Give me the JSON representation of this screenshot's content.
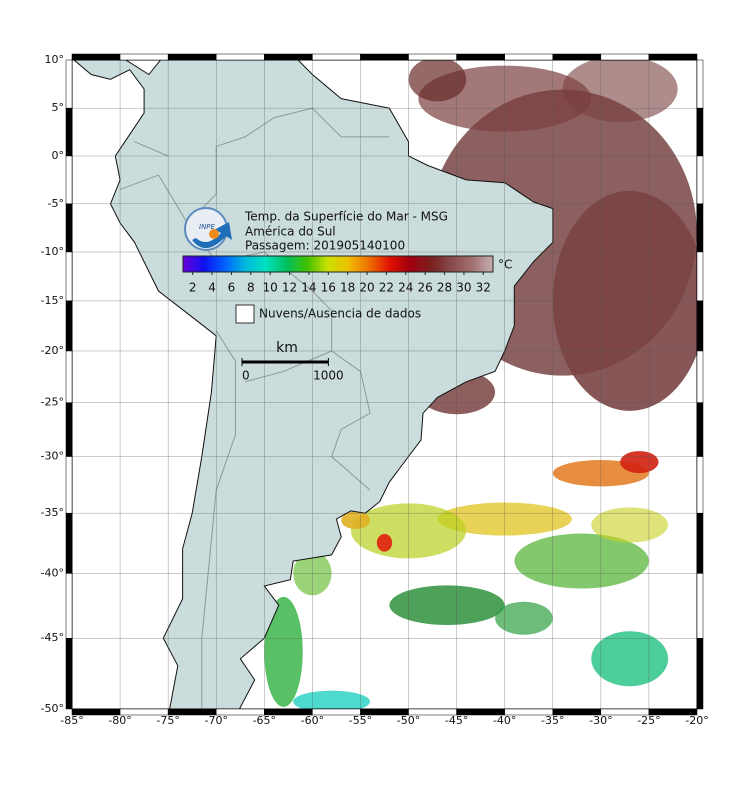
{
  "map": {
    "projection": "mercator",
    "xlim": [
      -85,
      -20
    ],
    "ylim": [
      -50,
      10
    ],
    "grid": true,
    "xticks": [
      {
        "value": -85,
        "label": "-85°"
      },
      {
        "value": -80,
        "label": "-80°"
      },
      {
        "value": -75,
        "label": "-75°"
      },
      {
        "value": -70,
        "label": "-70°"
      },
      {
        "value": -65,
        "label": "-65°"
      },
      {
        "value": -60,
        "label": "-60°"
      },
      {
        "value": -55,
        "label": "-55°"
      },
      {
        "value": -50,
        "label": "-50°"
      },
      {
        "value": -45,
        "label": "-45°"
      },
      {
        "value": -40,
        "label": "-40°"
      },
      {
        "value": -35,
        "label": "-35°"
      },
      {
        "value": -30,
        "label": "-30°"
      },
      {
        "value": -25,
        "label": "-25°"
      },
      {
        "value": -20,
        "label": "-20°"
      }
    ],
    "yticks": [
      {
        "value": 10,
        "label": "10°"
      },
      {
        "value": 5,
        "label": "5°"
      },
      {
        "value": 0,
        "label": "0°"
      },
      {
        "value": -5,
        "label": "-5°"
      },
      {
        "value": -10,
        "label": "-10°"
      },
      {
        "value": -15,
        "label": "-15°"
      },
      {
        "value": -20,
        "label": "-20°"
      },
      {
        "value": -25,
        "label": "-25°"
      },
      {
        "value": -30,
        "label": "-30°"
      },
      {
        "value": -35,
        "label": "-35°"
      },
      {
        "value": -40,
        "label": "-40°"
      },
      {
        "value": -45,
        "label": "-45°"
      },
      {
        "value": -50,
        "label": "-50°"
      }
    ]
  },
  "legend": {
    "logo": "INPE",
    "title": "Temp. da Superfície do Mar - MSG",
    "region": "América do Sul",
    "pass": "Passagem: 201905140100",
    "unit": "°C",
    "clim": [
      1,
      33
    ],
    "cticks": [
      2,
      4,
      6,
      8,
      10,
      12,
      14,
      16,
      18,
      20,
      22,
      24,
      26,
      28,
      30,
      32
    ],
    "colors": [
      "#6a00d8",
      "#1010f0",
      "#0060ff",
      "#00b8e0",
      "#00e0c0",
      "#00c060",
      "#40c000",
      "#c8e000",
      "#f0c000",
      "#f07000",
      "#e01000",
      "#a00010",
      "#7a2020",
      "#8a4a4a",
      "#a07070",
      "#c8b0b0"
    ],
    "missing_label": "Nuvens/Ausencia de dados",
    "scale": {
      "label": "km",
      "ticks": [
        0,
        1000
      ]
    }
  }
}
